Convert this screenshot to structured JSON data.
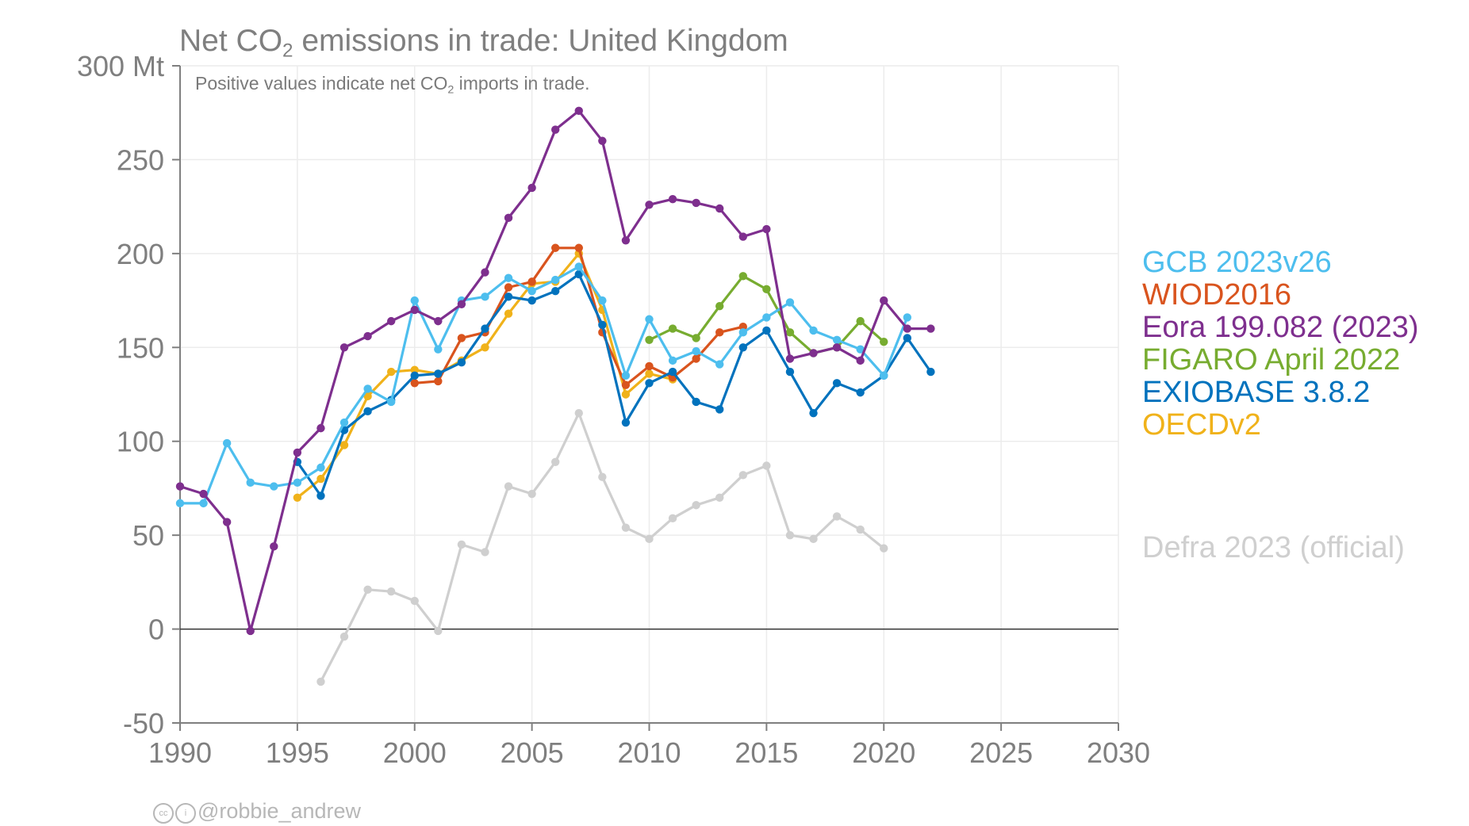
{
  "chart_data": {
    "type": "line",
    "title_main": "Net CO",
    "title_sub": "2",
    "title_rest": " emissions in trade: United Kingdom",
    "subtitle_main": "Positive values indicate net CO",
    "subtitle_sub": "2",
    "subtitle_rest": " imports in trade.",
    "xlim": [
      1990,
      2030
    ],
    "ylim": [
      -50,
      300
    ],
    "x_ticks": [
      1990,
      1995,
      2000,
      2005,
      2010,
      2015,
      2020,
      2025,
      2030
    ],
    "y_ticks": [
      -50,
      0,
      50,
      100,
      150,
      200,
      250,
      300
    ],
    "y_tick_labels": [
      "-50",
      "0",
      "50",
      "100",
      "150",
      "200",
      "250",
      "300 Mt"
    ],
    "series": [
      {
        "name": "Defra 2023 (official)",
        "color": "#cfcfcf",
        "x": [
          1996,
          1997,
          1998,
          1999,
          2000,
          2001,
          2002,
          2003,
          2004,
          2005,
          2006,
          2007,
          2008,
          2009,
          2010,
          2011,
          2012,
          2013,
          2014,
          2015,
          2016,
          2017,
          2018,
          2019,
          2020
        ],
        "values": [
          -28,
          -4,
          21,
          20,
          15,
          -1,
          45,
          41,
          76,
          72,
          89,
          115,
          81,
          54,
          48,
          59,
          66,
          70,
          82,
          87,
          50,
          48,
          60,
          53,
          43
        ]
      },
      {
        "name": "OECDv2",
        "color": "#f0b21a",
        "x": [
          1995,
          1996,
          1997,
          1998,
          1999,
          2000,
          2001,
          2002,
          2003,
          2004,
          2005,
          2006,
          2007,
          2008,
          2009,
          2010,
          2011
        ],
        "values": [
          70,
          80,
          98,
          124,
          137,
          138,
          136,
          143,
          150,
          168,
          184,
          185,
          200,
          170,
          125,
          136,
          133
        ]
      },
      {
        "name": "WIOD2016",
        "color": "#d9541e",
        "x": [
          2000,
          2001,
          2002,
          2003,
          2004,
          2005,
          2006,
          2007,
          2008,
          2009,
          2010,
          2011,
          2012,
          2013,
          2014
        ],
        "values": [
          131,
          132,
          155,
          158,
          182,
          185,
          203,
          203,
          158,
          130,
          140,
          134,
          144,
          158,
          161
        ]
      },
      {
        "name": "FIGARO April 2022",
        "color": "#77ac30",
        "x": [
          2010,
          2011,
          2012,
          2013,
          2014,
          2015,
          2016,
          2017,
          2018,
          2019,
          2020
        ],
        "values": [
          154,
          160,
          155,
          172,
          188,
          181,
          158,
          147,
          150,
          164,
          153
        ]
      },
      {
        "name": "EXIOBASE 3.8.2",
        "color": "#0072bd",
        "x": [
          1995,
          1996,
          1997,
          1998,
          1999,
          2000,
          2001,
          2002,
          2003,
          2004,
          2005,
          2006,
          2007,
          2008,
          2009,
          2010,
          2011,
          2012,
          2013,
          2014,
          2015,
          2016,
          2017,
          2018,
          2019,
          2020,
          2021,
          2022
        ],
        "values": [
          89,
          71,
          106,
          116,
          122,
          135,
          136,
          142,
          160,
          177,
          175,
          180,
          189,
          162,
          110,
          131,
          137,
          121,
          117,
          150,
          159,
          137,
          115,
          131,
          126,
          135,
          155,
          137
        ]
      },
      {
        "name": "GCB 2023v26",
        "color": "#4dbeee",
        "x": [
          1990,
          1991,
          1992,
          1993,
          1994,
          1995,
          1996,
          1997,
          1998,
          1999,
          2000,
          2001,
          2002,
          2003,
          2004,
          2005,
          2006,
          2007,
          2008,
          2009,
          2010,
          2011,
          2012,
          2013,
          2014,
          2015,
          2016,
          2017,
          2018,
          2019,
          2020,
          2021
        ],
        "values": [
          67,
          67,
          99,
          78,
          76,
          78,
          86,
          110,
          128,
          121,
          175,
          149,
          175,
          177,
          187,
          180,
          186,
          193,
          175,
          135,
          165,
          143,
          148,
          141,
          158,
          166,
          174,
          159,
          154,
          149,
          135,
          166
        ]
      },
      {
        "name": "Eora 199.082 (2023)",
        "color": "#7e2f8e",
        "x": [
          1990,
          1991,
          1992,
          1993,
          1994,
          1995,
          1996,
          1997,
          1998,
          1999,
          2000,
          2001,
          2002,
          2003,
          2004,
          2005,
          2006,
          2007,
          2008,
          2009,
          2010,
          2011,
          2012,
          2013,
          2014,
          2015,
          2016,
          2017,
          2018,
          2019,
          2020,
          2021,
          2022
        ],
        "values": [
          76,
          72,
          57,
          -1,
          44,
          94,
          107,
          150,
          156,
          164,
          170,
          164,
          173,
          190,
          219,
          235,
          266,
          276,
          260,
          207,
          226,
          229,
          227,
          224,
          209,
          213,
          144,
          147,
          150,
          143,
          175,
          160,
          160
        ]
      }
    ],
    "legend": [
      {
        "label": "GCB 2023v26",
        "color": "#4dbeee"
      },
      {
        "label": "WIOD2016",
        "color": "#d9541e"
      },
      {
        "label": "Eora 199.082 (2023)",
        "color": "#7e2f8e"
      },
      {
        "label": "FIGARO April 2022",
        "color": "#77ac30"
      },
      {
        "label": "EXIOBASE 3.8.2",
        "color": "#0072bd"
      },
      {
        "label": "OECDv2",
        "color": "#f0b21a"
      },
      {
        "label": "Defra 2023 (official)",
        "color": "#cfcfcf"
      }
    ],
    "credit": "@robbie_andrew",
    "credit_icon": "creative-commons-icon"
  }
}
